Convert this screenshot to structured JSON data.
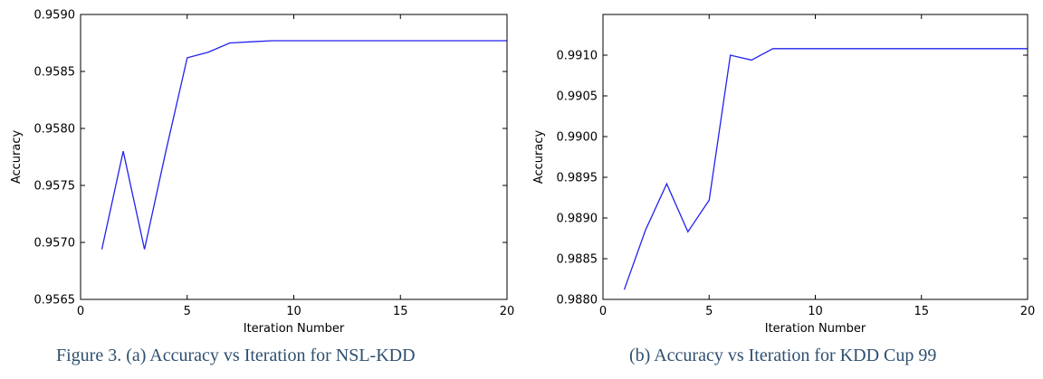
{
  "chart_data": [
    {
      "type": "line",
      "title": "",
      "xlabel": "Iteration Number",
      "ylabel": "Accuracy",
      "xlim": [
        0,
        20
      ],
      "ylim": [
        0.9565,
        0.959
      ],
      "xticks": [
        0,
        5,
        10,
        15,
        20
      ],
      "xtick_labels": [
        "0",
        "5",
        "10",
        "15",
        "20"
      ],
      "yticks": [
        0.9565,
        0.957,
        0.9575,
        0.958,
        0.9585,
        0.959
      ],
      "ytick_labels": [
        "0.9565",
        "0.9570",
        "0.9575",
        "0.9580",
        "0.9585",
        "0.9590"
      ],
      "grid": false,
      "line_color": "#2222ee",
      "series": [
        {
          "x": [
            1,
            2,
            3,
            4,
            5,
            6,
            7,
            8,
            9,
            10,
            11,
            12,
            13,
            14,
            15,
            16,
            17,
            18,
            19,
            20
          ],
          "y": [
            0.95694,
            0.9578,
            0.95694,
            0.9578,
            0.95862,
            0.95867,
            0.95875,
            0.95876,
            0.95877,
            0.95877,
            0.95877,
            0.95877,
            0.95877,
            0.95877,
            0.95877,
            0.95877,
            0.95877,
            0.95877,
            0.95877,
            0.95877
          ]
        }
      ]
    },
    {
      "type": "line",
      "title": "",
      "xlabel": "Iteration Number",
      "ylabel": "Accuracy",
      "xlim": [
        0,
        20
      ],
      "ylim": [
        0.988,
        0.9915
      ],
      "xticks": [
        0,
        5,
        10,
        15,
        20
      ],
      "xtick_labels": [
        "0",
        "5",
        "10",
        "15",
        "20"
      ],
      "yticks": [
        0.988,
        0.9885,
        0.989,
        0.9895,
        0.99,
        0.9905,
        0.991
      ],
      "ytick_labels": [
        "0.9880",
        "0.9885",
        "0.9890",
        "0.9895",
        "0.9900",
        "0.9905",
        "0.9910"
      ],
      "grid": false,
      "line_color": "#2222ee",
      "series": [
        {
          "x": [
            1,
            2,
            3,
            4,
            5,
            6,
            7,
            8,
            9,
            10,
            11,
            12,
            13,
            14,
            15,
            16,
            17,
            18,
            19,
            20
          ],
          "y": [
            0.98812,
            0.98885,
            0.98942,
            0.98883,
            0.98922,
            0.991,
            0.99094,
            0.99108,
            0.99108,
            0.99108,
            0.99108,
            0.99108,
            0.99108,
            0.99108,
            0.99108,
            0.99108,
            0.99108,
            0.99108,
            0.99108,
            0.99108
          ]
        }
      ]
    }
  ],
  "captions": {
    "a": "Figure 3. (a) Accuracy vs Iteration for NSL-KDD",
    "b": "(b) Accuracy vs Iteration for KDD Cup 99"
  }
}
